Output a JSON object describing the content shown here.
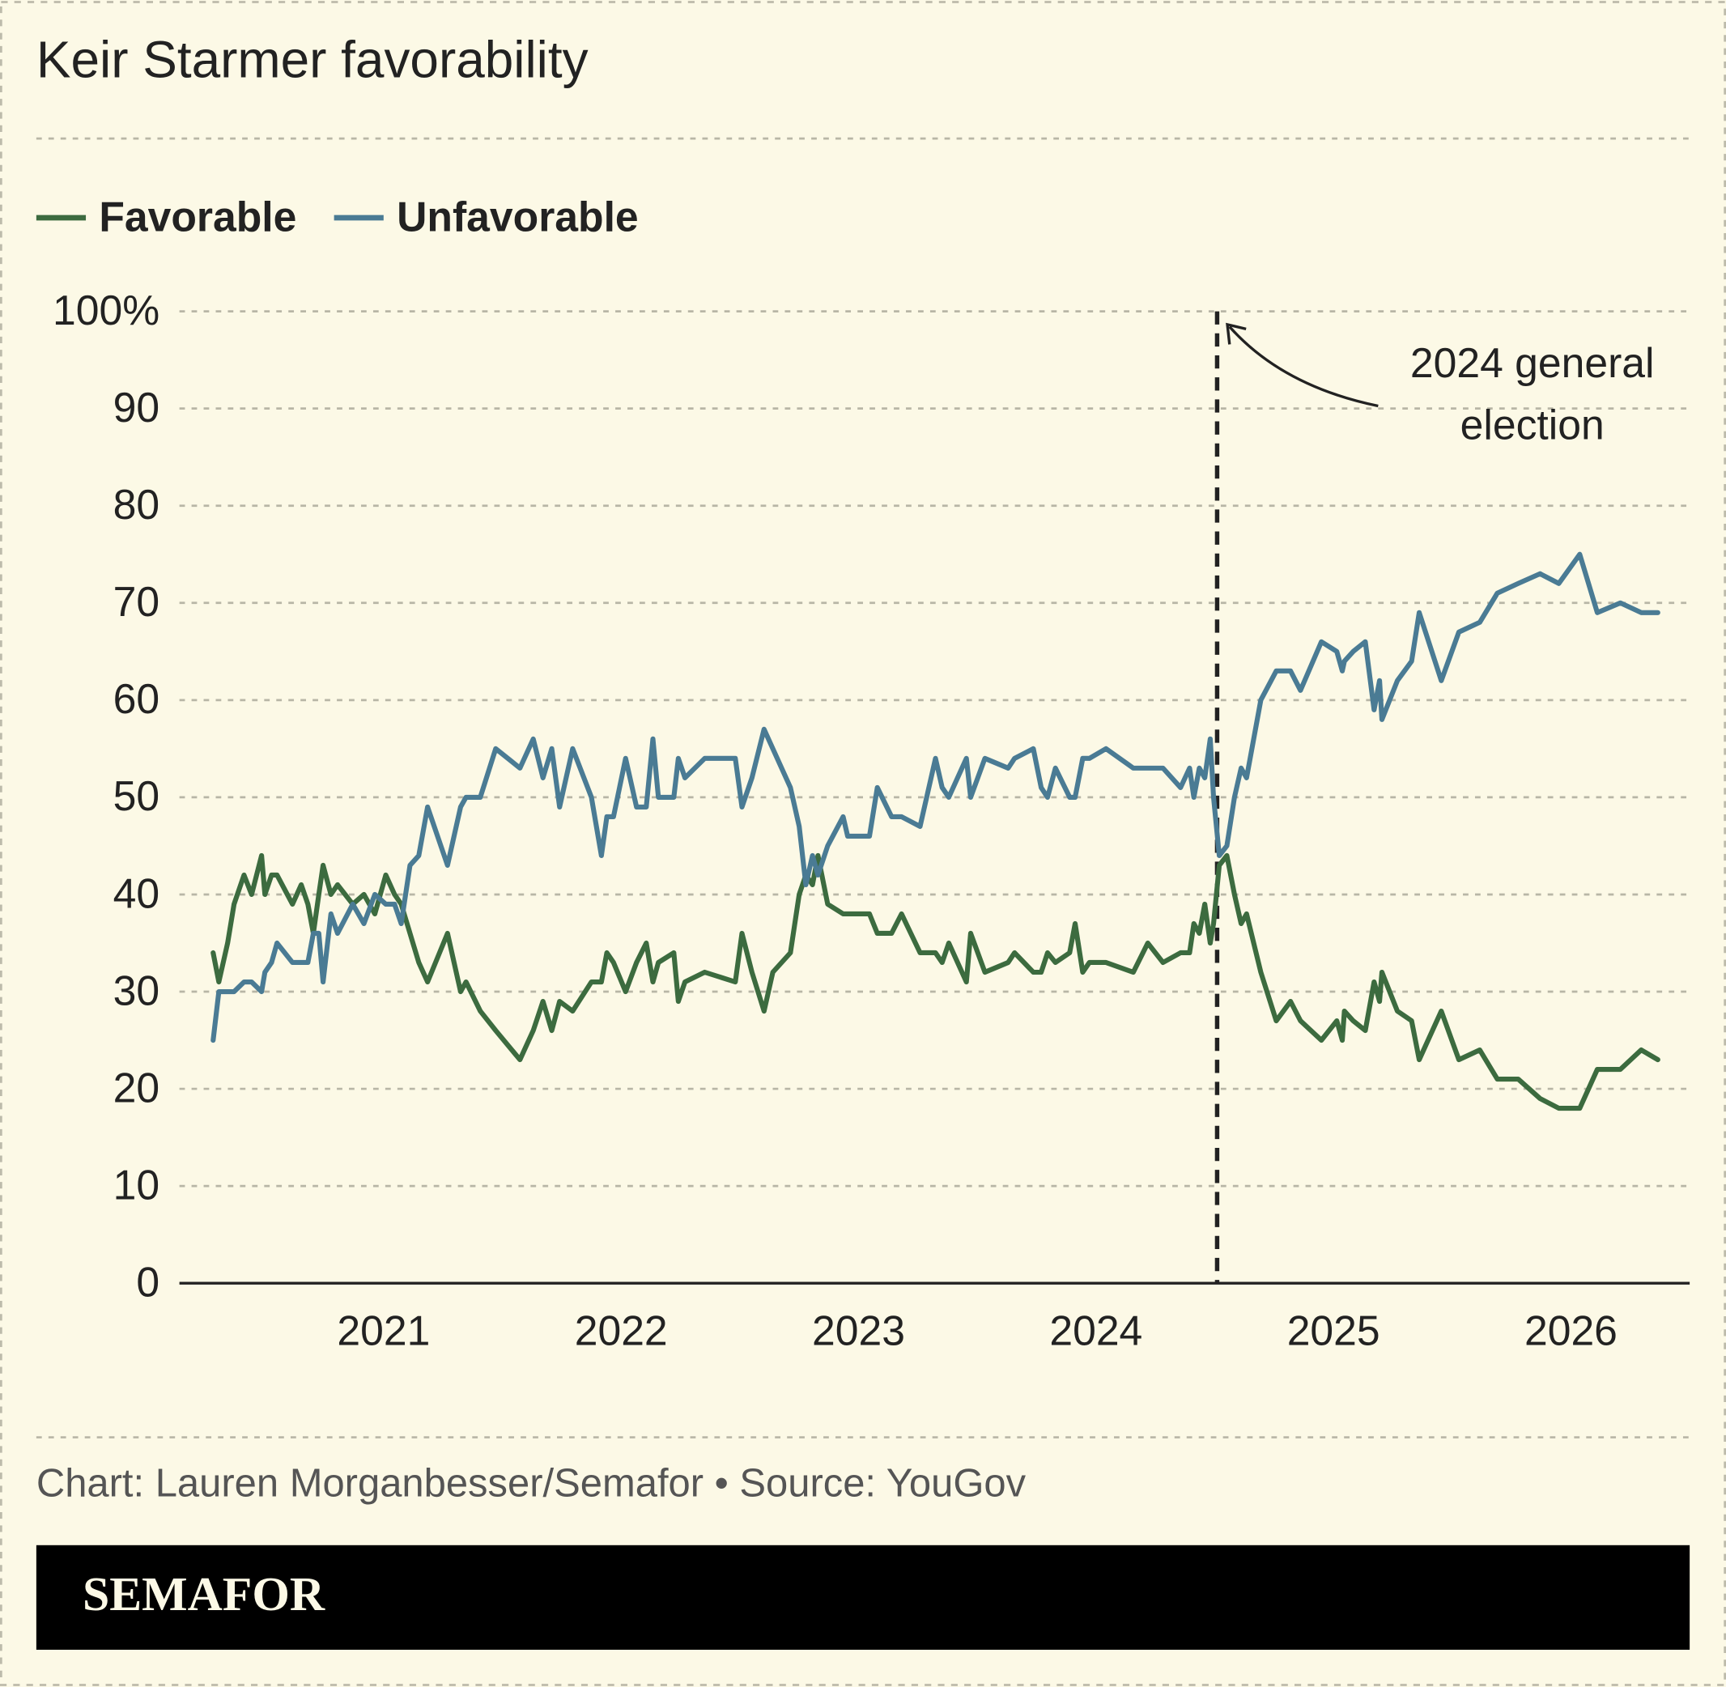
{
  "chart_data": {
    "type": "line",
    "title": "Keir Starmer favorability",
    "source": "Chart: Lauren Morganbesser/Semafor • Source: YouGov",
    "brand": "SEMAFOR",
    "xlim": [
      2020.14,
      2026.5
    ],
    "xticks": [
      2021,
      2022,
      2023,
      2024,
      2025,
      2026
    ],
    "ylim": [
      0,
      100
    ],
    "yticks": [
      0,
      10,
      20,
      30,
      40,
      50,
      60,
      70,
      80,
      90,
      {
        "value": 100,
        "label": "100%"
      }
    ],
    "grid": true,
    "annotation": {
      "lines": [
        "2024 general",
        "election"
      ],
      "x": 2024.51
    },
    "x": [
      2020.282,
      2020.306,
      2020.343,
      2020.37,
      2020.412,
      2020.444,
      2020.486,
      2020.5,
      2020.528,
      2020.551,
      2020.616,
      2020.653,
      2020.681,
      2020.704,
      2020.727,
      2020.745,
      2020.778,
      2020.806,
      2020.87,
      2020.917,
      2020.963,
      2021.009,
      2021.046,
      2021.074,
      2021.111,
      2021.148,
      2021.185,
      2021.269,
      2021.324,
      2021.347,
      2021.407,
      2021.472,
      2021.574,
      2021.63,
      2021.671,
      2021.708,
      2021.741,
      2021.796,
      2021.875,
      2021.917,
      2021.94,
      2021.968,
      2022.019,
      2022.065,
      2022.106,
      2022.134,
      2022.157,
      2022.222,
      2022.241,
      2022.269,
      2022.352,
      2022.481,
      2022.509,
      2022.551,
      2022.602,
      2022.639,
      2022.713,
      2022.75,
      2022.778,
      2022.806,
      2022.829,
      2022.87,
      2022.935,
      2022.954,
      2023.046,
      2023.079,
      2023.139,
      2023.181,
      2023.259,
      2023.324,
      2023.352,
      2023.38,
      2023.454,
      2023.472,
      2023.532,
      2023.63,
      2023.657,
      2023.736,
      2023.769,
      2023.796,
      2023.829,
      2023.889,
      2023.912,
      2023.944,
      2023.972,
      2024.042,
      2024.157,
      2024.218,
      2024.282,
      2024.356,
      2024.394,
      2024.412,
      2024.435,
      2024.458,
      2024.481,
      2024.495,
      2024.519,
      2024.551,
      2024.583,
      2024.611,
      2024.634,
      2024.694,
      2024.759,
      2024.819,
      2024.861,
      2024.949,
      2025.014,
      2025.037,
      2025.046,
      2025.083,
      2025.134,
      2025.171,
      2025.194,
      2025.204,
      2025.269,
      2025.329,
      2025.361,
      2025.454,
      2025.528,
      2025.616,
      2025.69,
      2025.778,
      2025.87,
      2025.949,
      2026.037,
      2026.111,
      2026.208,
      2026.296,
      2026.366
    ],
    "series": [
      {
        "name": "Favorable",
        "color": "#3c6b3f",
        "values": [
          34,
          31,
          35,
          39,
          42,
          40,
          44,
          40,
          42,
          42,
          39,
          41,
          39,
          36,
          40,
          43,
          40,
          41,
          39,
          40,
          38,
          42,
          40,
          39,
          36,
          33,
          31,
          36,
          30,
          31,
          28,
          26,
          23,
          26,
          29,
          26,
          29,
          28,
          31,
          31,
          34,
          33,
          30,
          33,
          35,
          31,
          33,
          34,
          29,
          31,
          32,
          31,
          36,
          32,
          28,
          32,
          34,
          40,
          42,
          41,
          44,
          39,
          38,
          38,
          38,
          36,
          36,
          38,
          34,
          34,
          33,
          35,
          31,
          36,
          32,
          33,
          34,
          32,
          32,
          34,
          33,
          34,
          37,
          32,
          33,
          33,
          32,
          35,
          33,
          34,
          34,
          37,
          36,
          39,
          35,
          37,
          43,
          44,
          40,
          37,
          38,
          32,
          27,
          29,
          27,
          25,
          27,
          25,
          28,
          27,
          26,
          31,
          29,
          32,
          28,
          27,
          23,
          28,
          23,
          24,
          21,
          21,
          19,
          18,
          18,
          22,
          22,
          24,
          23
        ]
      },
      {
        "name": "Unfavorable",
        "color": "#4a7b94",
        "values": [
          25,
          30,
          30,
          30,
          31,
          31,
          30,
          32,
          33,
          35,
          33,
          33,
          33,
          36,
          36,
          31,
          38,
          36,
          39,
          37,
          40,
          39,
          39,
          37,
          43,
          44,
          49,
          43,
          49,
          50,
          50,
          55,
          53,
          56,
          52,
          55,
          49,
          55,
          50,
          44,
          48,
          48,
          54,
          49,
          49,
          56,
          50,
          50,
          54,
          52,
          54,
          54,
          49,
          52,
          57,
          55,
          51,
          47,
          41,
          44,
          42,
          45,
          48,
          46,
          46,
          51,
          48,
          48,
          47,
          54,
          51,
          50,
          54,
          50,
          54,
          53,
          54,
          55,
          51,
          50,
          53,
          50,
          50,
          54,
          54,
          55,
          53,
          53,
          53,
          51,
          53,
          50,
          53,
          52,
          56,
          50,
          44,
          45,
          50,
          53,
          52,
          60,
          63,
          63,
          61,
          66,
          65,
          63,
          64,
          65,
          66,
          59,
          62,
          58,
          62,
          64,
          69,
          62,
          67,
          68,
          71,
          72,
          73,
          72,
          75,
          69,
          70,
          69,
          69
        ]
      }
    ]
  }
}
